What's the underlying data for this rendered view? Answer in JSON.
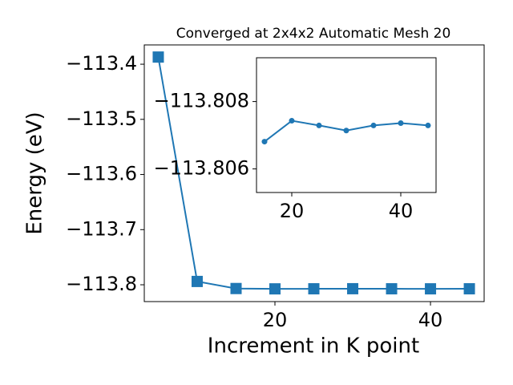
{
  "chart_data": [
    {
      "type": "line",
      "title": "Converged at 2x4x2 Automatic Mesh 20",
      "x_label": "Increment in K point",
      "y_label": "Energy (eV)",
      "series": [
        {
          "name": "main",
          "color": "#1f77b4",
          "marker": "square",
          "x": [
            5,
            10,
            15,
            20,
            25,
            30,
            35,
            40,
            45
          ],
          "values": [
            -113.387,
            -113.794,
            -113.80681,
            -113.80743,
            -113.80729,
            -113.80714,
            -113.80729,
            -113.80736,
            -113.80729
          ]
        }
      ],
      "xlim": [
        3.2,
        46.9
      ],
      "xticks": [
        20,
        40
      ],
      "ylim": [
        -113.8305,
        -113.365
      ],
      "yticks": [
        {
          "value": -113.8,
          "label": "−113.8"
        },
        {
          "value": -113.7,
          "label": "−113.7"
        },
        {
          "value": -113.6,
          "label": "−113.6"
        },
        {
          "value": -113.5,
          "label": "−113.5"
        },
        {
          "value": -113.4,
          "label": "−113.4"
        }
      ]
    },
    {
      "type": "line",
      "series": [
        {
          "name": "inset",
          "color": "#1f77b4",
          "marker": "circle",
          "x": [
            15,
            20,
            25,
            30,
            35,
            40,
            45
          ],
          "values": [
            -113.80681,
            -113.80743,
            -113.80729,
            -113.80714,
            -113.80729,
            -113.80736,
            -113.80729
          ]
        }
      ],
      "xlim": [
        13.53,
        46.47
      ],
      "xticks": [
        20,
        40
      ],
      "ylim": [
        -113.8053,
        -113.8093
      ],
      "yticks": [
        {
          "value": -113.806,
          "label": "−113.806"
        },
        {
          "value": -113.808,
          "label": "−113.808"
        }
      ]
    }
  ]
}
